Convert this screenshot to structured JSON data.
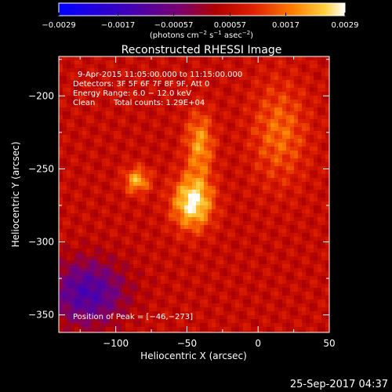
{
  "chart_data": {
    "type": "heatmap",
    "title": "Reconstructed RHESSI Image",
    "xlabel": "Heliocentric X (arcsec)",
    "ylabel": "Heliocentric Y (arcsec)",
    "xlim": [
      -140,
      50
    ],
    "ylim": [
      -362,
      -173
    ],
    "x_ticks": [
      -100,
      -50,
      0,
      50
    ],
    "x_tick_labels": [
      "−100",
      "−50",
      "0",
      "50"
    ],
    "y_ticks": [
      -200,
      -250,
      -300,
      -350
    ],
    "y_tick_labels": [
      "−200",
      "−250",
      "−300",
      "−350"
    ],
    "colorbar": {
      "range": [
        -0.0029,
        0.0029
      ],
      "ticks": [
        -0.0029,
        -0.0017,
        -0.00057,
        0.00057,
        0.0017,
        0.0029
      ],
      "tick_labels": [
        "−0.0029",
        "−0.0017",
        "−0.00057",
        "0.00057",
        "0.0017",
        "0.0029"
      ],
      "units_main": "(photons cm",
      "units_sup1": "−2",
      "units_mid": " s",
      "units_sup2": "−1",
      "units_mid2": " asec",
      "units_sup3": "−2",
      "units_end": ")"
    },
    "annotations": {
      "time_range": "9‑Apr‑2015 11:05:00.000 to 11:15:00.000",
      "detectors": "Detectors: 3F 5F 6F 7F 8F 9F, Att 0",
      "energy": "Energy Range: 6.0 − 12.0 keV",
      "clean": "Clean",
      "counts": "Total counts: 1.29E+04",
      "peak": "Position of Peak = [−46,−273]"
    },
    "peak": {
      "x": -46,
      "y": -273
    },
    "secondary_source": {
      "x": -85,
      "y": -258
    },
    "negative_region": {
      "x": -120,
      "y": -335
    }
  },
  "footer": {
    "timestamp": "25‑Sep‑2017 04:37"
  }
}
